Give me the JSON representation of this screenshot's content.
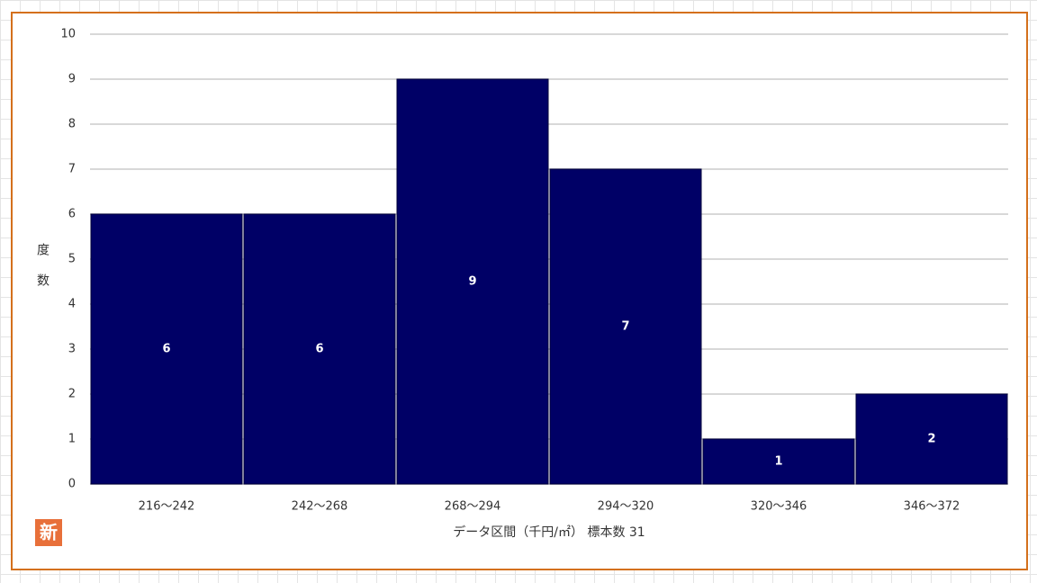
{
  "chart_data": {
    "type": "bar",
    "categories": [
      "216～242",
      "242～268",
      "268～294",
      "294～320",
      "320～346",
      "346～372"
    ],
    "values": [
      6,
      6,
      9,
      7,
      1,
      2
    ],
    "color": "#000066",
    "ylim": [
      0,
      10
    ],
    "yticks": [
      0,
      1,
      2,
      3,
      4,
      5,
      6,
      7,
      8,
      9,
      10
    ],
    "grid": true,
    "y_label": "度数",
    "x_label": "データ区間（千円/㎡） 標本数 31"
  },
  "badge": "新"
}
